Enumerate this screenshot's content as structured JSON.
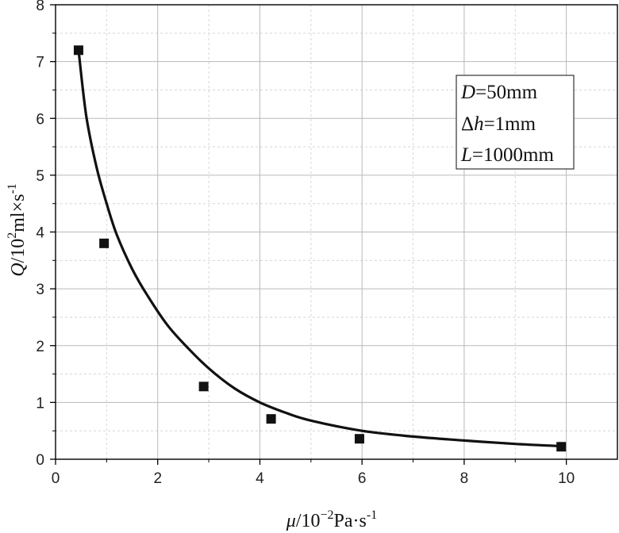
{
  "chart_data": {
    "type": "scatter",
    "xlabel": {
      "symbol": "μ",
      "unit": "/10",
      "exp": "−2",
      "unit2": "Pa·s",
      "unit_exp": "-1"
    },
    "ylabel": {
      "symbol": "Q",
      "unit": "/10",
      "exp": "2",
      "unit2": "ml×s",
      "unit_exp": "-1"
    },
    "xlim": [
      0,
      11
    ],
    "ylim": [
      0,
      8
    ],
    "x_ticks": [
      0,
      2,
      4,
      6,
      8,
      10
    ],
    "y_ticks": [
      0,
      1,
      2,
      3,
      4,
      5,
      6,
      7,
      8
    ],
    "grid": true,
    "series": [
      {
        "marker": "square",
        "color": "#111111",
        "x": [
          0.45,
          0.95,
          2.9,
          4.22,
          5.95,
          9.9
        ],
        "y": [
          7.2,
          3.8,
          1.28,
          0.71,
          0.36,
          0.22
        ]
      }
    ],
    "fit_curve": {
      "color": "#111111",
      "x": [
        0.45,
        0.6,
        0.8,
        1.0,
        1.2,
        1.5,
        1.8,
        2.2,
        2.6,
        3.0,
        3.5,
        4.0,
        4.5,
        5.0,
        6.0,
        7.0,
        8.0,
        9.0,
        9.9
      ],
      "y": [
        7.2,
        6.05,
        5.15,
        4.5,
        3.95,
        3.35,
        2.88,
        2.35,
        1.95,
        1.6,
        1.25,
        1.0,
        0.82,
        0.68,
        0.5,
        0.4,
        0.33,
        0.27,
        0.23
      ]
    },
    "legend": {
      "position": "top-right",
      "lines": [
        {
          "sym": "D",
          "rest": "=50mm"
        },
        {
          "sym": "Δh",
          "rest": "=1mm"
        },
        {
          "sym": "L",
          "rest": "=1000mm"
        }
      ]
    }
  }
}
